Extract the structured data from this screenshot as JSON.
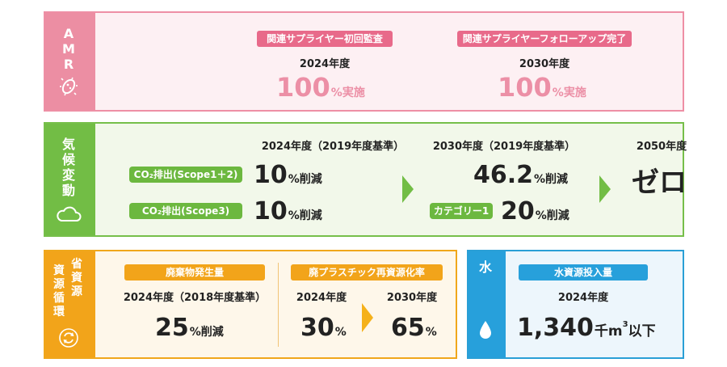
{
  "amr": {
    "side_label": [
      "A",
      "M",
      "R"
    ],
    "icon": "bacteria-icon",
    "items": [
      {
        "badge": "関連サプライヤー初回監査",
        "year": "2024年度",
        "value": "100",
        "unit": "%実施"
      },
      {
        "badge": "関連サプライヤーフォローアップ完了",
        "year": "2030年度",
        "value": "100",
        "unit": "%実施"
      }
    ],
    "colors": {
      "side": "#ec8ea3",
      "bg": "#fdf0f3",
      "badge": "#e86a8a",
      "value": "#ec8fa6"
    }
  },
  "climate": {
    "side_label": [
      "気",
      "候",
      "変",
      "動"
    ],
    "icon": "cloud-icon",
    "col1_header": "2024年度（2019年度基準）",
    "col2_header": "2030年度（2019年度基準）",
    "col3_header": "2050年度",
    "rows": [
      {
        "badge": "CO₂排出(Scope1＋2)",
        "value": "10",
        "unit": "%削減"
      },
      {
        "badge": "CO₂排出(Scope3)",
        "value": "10",
        "unit": "%削減"
      }
    ],
    "col2": [
      {
        "value": "46.2",
        "unit": "%削減"
      },
      {
        "badge": "カテゴリー1",
        "value": "20",
        "unit": "%削減"
      }
    ],
    "col3_value": "ゼロ",
    "colors": {
      "side": "#72bd45",
      "bg": "#f2f8ea",
      "badge": "#6cb83f",
      "arrow": "#72bd45"
    }
  },
  "resource": {
    "side_label_col1": [
      "資",
      "源",
      "循",
      "環"
    ],
    "side_label_col2": [
      "省",
      "資",
      "源"
    ],
    "icon": "recycle-icon",
    "waste": {
      "badge": "廃棄物発生量",
      "year": "2024年度（2018年度基準）",
      "value": "25",
      "unit": "%削減"
    },
    "plastic": {
      "badge": "廃プラスチック再資源化率",
      "year1": "2024年度",
      "value1": "30",
      "unit1": "%",
      "year2": "2030年度",
      "value2": "65",
      "unit2": "%"
    },
    "colors": {
      "side": "#f2a41a",
      "bg": "#fef7ea",
      "badge": "#f2a41a",
      "arrow": "#f5b11a"
    }
  },
  "water": {
    "side_label": "水",
    "icon": "water-drop-icon",
    "badge": "水資源投入量",
    "year": "2024年度",
    "value": "1,340",
    "unit_prefix": "千m",
    "unit_sup": "3",
    "unit_suffix": "以下",
    "colors": {
      "side": "#27a0db",
      "bg": "#edf6fc",
      "badge": "#27a0db"
    }
  }
}
